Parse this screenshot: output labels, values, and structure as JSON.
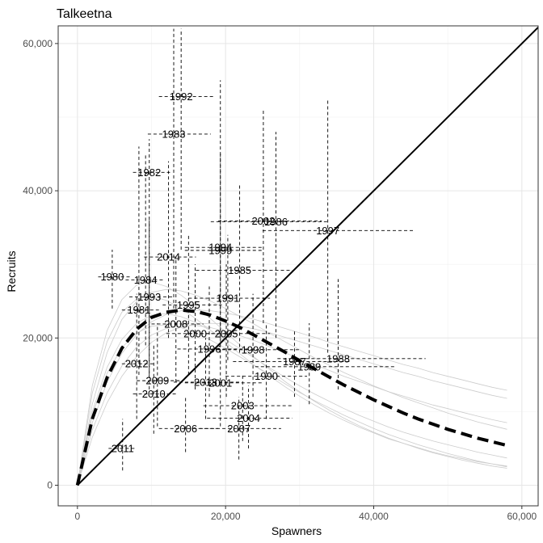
{
  "chart_data": {
    "type": "scatter",
    "title": "Talkeetna",
    "xlabel": "Spawners",
    "ylabel": "Recruits",
    "xlim": [
      -2600,
      62200
    ],
    "ylim": [
      -2800,
      62400
    ],
    "x_ticks": [
      0,
      20000,
      40000,
      60000
    ],
    "x_tick_labels": [
      "0",
      "20,000",
      "40,000",
      "60,000"
    ],
    "y_ticks": [
      0,
      20000,
      40000,
      60000
    ],
    "y_tick_labels": [
      "0",
      "20,000",
      "40,000",
      "60,000"
    ],
    "grid": true,
    "replacement_line": [
      [
        0,
        0
      ],
      [
        62200,
        62200
      ]
    ],
    "fitted_curve": {
      "style": "dashed",
      "x": [
        0,
        2000,
        4000,
        6000,
        8000,
        10000,
        12000,
        14000,
        16000,
        18000,
        20000,
        22000,
        24000,
        26000,
        28000,
        30000,
        32000,
        34000,
        36000,
        38000,
        40000,
        42000,
        44000,
        46000,
        48000,
        50000,
        52000,
        54000,
        56000,
        58000
      ],
      "y": [
        0,
        9000,
        14600,
        18600,
        21200,
        22800,
        23500,
        23800,
        23600,
        23100,
        22300,
        21400,
        20300,
        19200,
        18100,
        16900,
        15800,
        14700,
        13600,
        12600,
        11600,
        10700,
        9800,
        9000,
        8300,
        7600,
        7000,
        6400,
        5900,
        5400
      ]
    },
    "posterior_curves": {
      "color": "#cccccc",
      "count": 8,
      "x": [
        0,
        2000,
        4000,
        6000,
        8000,
        10000,
        12000,
        14000,
        16000,
        18000,
        20000,
        22000,
        24000,
        26000,
        28000,
        30000,
        32000,
        34000,
        36000,
        38000,
        40000,
        42000,
        44000,
        46000,
        48000,
        50000,
        52000,
        54000,
        56000,
        58000
      ],
      "y": [
        [
          0,
          11000,
          18000,
          22500,
          25000,
          26200,
          26600,
          26400,
          25800,
          25000,
          24000,
          22900,
          21800,
          20600,
          19500,
          18400,
          17300,
          16300,
          15300,
          14400,
          13500,
          12700,
          11900,
          11200,
          10500,
          9800,
          9200,
          8600,
          8100,
          7600
        ],
        [
          0,
          7500,
          12500,
          16200,
          18800,
          20400,
          21300,
          21700,
          21700,
          21400,
          20900,
          20300,
          19600,
          18800,
          18000,
          17200,
          16400,
          15600,
          14800,
          14100,
          13400,
          12700,
          12100,
          11500,
          10900,
          10400,
          9900,
          9400,
          8900,
          8500
        ],
        [
          0,
          12500,
          19500,
          23500,
          25300,
          25700,
          25100,
          24000,
          22600,
          21000,
          19400,
          17800,
          16200,
          14800,
          13400,
          12100,
          10900,
          9800,
          8800,
          7900,
          7100,
          6300,
          5700,
          5100,
          4500,
          4000,
          3600,
          3200,
          2900,
          2600
        ],
        [
          0,
          8500,
          14000,
          17900,
          20500,
          22200,
          23200,
          23700,
          23800,
          23700,
          23400,
          23000,
          22500,
          21900,
          21300,
          20700,
          20100,
          19400,
          18800,
          18200,
          17600,
          17000,
          16400,
          15900,
          15300,
          14800,
          14300,
          13800,
          13300,
          12900
        ],
        [
          0,
          10000,
          16000,
          19800,
          22000,
          23100,
          23300,
          22900,
          22100,
          21000,
          19800,
          18500,
          17200,
          15900,
          14700,
          13500,
          12400,
          11400,
          10400,
          9500,
          8700,
          7900,
          7200,
          6600,
          6000,
          5500,
          5000,
          4500,
          4100,
          3700
        ],
        [
          0,
          6500,
          11200,
          14800,
          17500,
          19400,
          20700,
          21500,
          21900,
          22000,
          21900,
          21600,
          21200,
          20700,
          20100,
          19500,
          18900,
          18300,
          17700,
          17100,
          16500,
          15900,
          15300,
          14800,
          14200,
          13700,
          13200,
          12700,
          12200,
          11800
        ],
        [
          0,
          13500,
          21000,
          25200,
          27200,
          27600,
          27000,
          25800,
          24300,
          22600,
          20800,
          19000,
          17300,
          15700,
          14100,
          12700,
          11400,
          10200,
          9100,
          8100,
          7200,
          6400,
          5700,
          5000,
          4400,
          3900,
          3400,
          3000,
          2600,
          2300
        ],
        [
          0,
          9500,
          15200,
          18700,
          20700,
          21600,
          21800,
          21400,
          20700,
          19700,
          18600,
          17400,
          16200,
          15000,
          13800,
          12600,
          11500,
          10500,
          9500,
          8600,
          7700,
          6900,
          6200,
          5500,
          4900,
          4300,
          3800,
          3300,
          2900,
          2500
        ]
      ]
    },
    "points": [
      {
        "label": "1980",
        "x": 4700,
        "y": 28300,
        "x_lo": 2800,
        "x_hi": 7200,
        "y_lo": 24000,
        "y_hi": 32000
      },
      {
        "label": "1981",
        "x": 8300,
        "y": 23800,
        "x_lo": 6000,
        "x_hi": 11000,
        "y_lo": 15000,
        "y_hi": 46000
      },
      {
        "label": "1982",
        "x": 9700,
        "y": 42500,
        "x_lo": 7500,
        "x_hi": 12500,
        "y_lo": 13000,
        "y_hi": 47000
      },
      {
        "label": "1983",
        "x": 13000,
        "y": 47700,
        "x_lo": 9500,
        "x_hi": 18000,
        "y_lo": 24000,
        "y_hi": 62000
      },
      {
        "label": "1984",
        "x": 9200,
        "y": 27900,
        "x_lo": 6500,
        "x_hi": 11800,
        "y_lo": 19000,
        "y_hi": 45000
      },
      {
        "label": "1985",
        "x": 21900,
        "y": 29200,
        "x_lo": 16000,
        "x_hi": 29000,
        "y_lo": 18000,
        "y_hi": 41000
      },
      {
        "label": "1986",
        "x": 26800,
        "y": 35800,
        "x_lo": 18000,
        "x_hi": 34000,
        "y_lo": 20000,
        "y_hi": 48000
      },
      {
        "label": "1987",
        "x": 29300,
        "y": 16800,
        "x_lo": 21000,
        "x_hi": 37000,
        "y_lo": 12000,
        "y_hi": 21000
      },
      {
        "label": "1988",
        "x": 35200,
        "y": 17200,
        "x_lo": 27000,
        "x_hi": 47000,
        "y_lo": 13000,
        "y_hi": 28000
      },
      {
        "label": "1989",
        "x": 31300,
        "y": 16100,
        "x_lo": 24000,
        "x_hi": 43000,
        "y_lo": 11000,
        "y_hi": 22000
      },
      {
        "label": "1990",
        "x": 25500,
        "y": 14800,
        "x_lo": 20000,
        "x_hi": 31000,
        "y_lo": 9000,
        "y_hi": 22000
      },
      {
        "label": "1991",
        "x": 20300,
        "y": 25400,
        "x_lo": 15000,
        "x_hi": 26000,
        "y_lo": 17000,
        "y_hi": 34000
      },
      {
        "label": "1992",
        "x": 14000,
        "y": 52800,
        "x_lo": 11000,
        "x_hi": 18500,
        "y_lo": 32000,
        "y_hi": 62000
      },
      {
        "label": "1993",
        "x": 9700,
        "y": 25600,
        "x_lo": 7000,
        "x_hi": 13000,
        "y_lo": 15000,
        "y_hi": 36000
      },
      {
        "label": "1994",
        "x": 19300,
        "y": 32300,
        "x_lo": 14500,
        "x_hi": 25000,
        "y_lo": 20000,
        "y_hi": 45000
      },
      {
        "label": "1995",
        "x": 15000,
        "y": 24500,
        "x_lo": 11500,
        "x_hi": 19500,
        "y_lo": 15000,
        "y_hi": 34000
      },
      {
        "label": "1996",
        "x": 17800,
        "y": 18500,
        "x_lo": 13500,
        "x_hi": 23000,
        "y_lo": 12000,
        "y_hi": 27000
      },
      {
        "label": "1997",
        "x": 33800,
        "y": 34600,
        "x_lo": 25000,
        "x_hi": 45500,
        "y_lo": 18000,
        "y_hi": 52500
      },
      {
        "label": "1998",
        "x": 23700,
        "y": 18400,
        "x_lo": 18000,
        "x_hi": 30000,
        "y_lo": 12000,
        "y_hi": 26000
      },
      {
        "label": "1999",
        "x": 19300,
        "y": 31900,
        "x_lo": 14500,
        "x_hi": 25000,
        "y_lo": 21000,
        "y_hi": 55000
      },
      {
        "label": "2000",
        "x": 15900,
        "y": 20600,
        "x_lo": 12000,
        "x_hi": 21000,
        "y_lo": 13000,
        "y_hi": 30000
      },
      {
        "label": "2001",
        "x": 19300,
        "y": 13900,
        "x_lo": 14500,
        "x_hi": 25000,
        "y_lo": 8000,
        "y_hi": 21000
      },
      {
        "label": "2002",
        "x": 25100,
        "y": 35900,
        "x_lo": 19000,
        "x_hi": 33000,
        "y_lo": 22000,
        "y_hi": 51000
      },
      {
        "label": "2003",
        "x": 22300,
        "y": 10800,
        "x_lo": 17000,
        "x_hi": 29000,
        "y_lo": 6000,
        "y_hi": 15000
      },
      {
        "label": "2004",
        "x": 23100,
        "y": 9100,
        "x_lo": 17500,
        "x_hi": 29000,
        "y_lo": 5000,
        "y_hi": 13500
      },
      {
        "label": "2005",
        "x": 20100,
        "y": 20600,
        "x_lo": 15000,
        "x_hi": 26000,
        "y_lo": 12000,
        "y_hi": 30000
      },
      {
        "label": "2006",
        "x": 14600,
        "y": 7700,
        "x_lo": 11000,
        "x_hi": 19000,
        "y_lo": 4500,
        "y_hi": 12000
      },
      {
        "label": "2007",
        "x": 21800,
        "y": 7700,
        "x_lo": 16500,
        "x_hi": 27500,
        "y_lo": 3500,
        "y_hi": 12000
      },
      {
        "label": "2008",
        "x": 13300,
        "y": 21900,
        "x_lo": 10000,
        "x_hi": 17000,
        "y_lo": 14000,
        "y_hi": 31000
      },
      {
        "label": "2009",
        "x": 10800,
        "y": 14200,
        "x_lo": 8000,
        "x_hi": 14000,
        "y_lo": 8000,
        "y_hi": 22000
      },
      {
        "label": "2010",
        "x": 10300,
        "y": 12400,
        "x_lo": 7500,
        "x_hi": 13500,
        "y_lo": 7000,
        "y_hi": 19000
      },
      {
        "label": "2011",
        "x": 6100,
        "y": 5000,
        "x_lo": 4200,
        "x_hi": 8000,
        "y_lo": 2000,
        "y_hi": 9000
      },
      {
        "label": "2012",
        "x": 8000,
        "y": 16500,
        "x_lo": 6000,
        "x_hi": 10500,
        "y_lo": 9000,
        "y_hi": 26000
      },
      {
        "label": "2013",
        "x": 17300,
        "y": 14000,
        "x_lo": 13000,
        "x_hi": 22000,
        "y_lo": 9000,
        "y_hi": 20000
      },
      {
        "label": "2014",
        "x": 12300,
        "y": 31000,
        "x_lo": 9000,
        "x_hi": 16000,
        "y_lo": 20000,
        "y_hi": 44000
      }
    ]
  }
}
